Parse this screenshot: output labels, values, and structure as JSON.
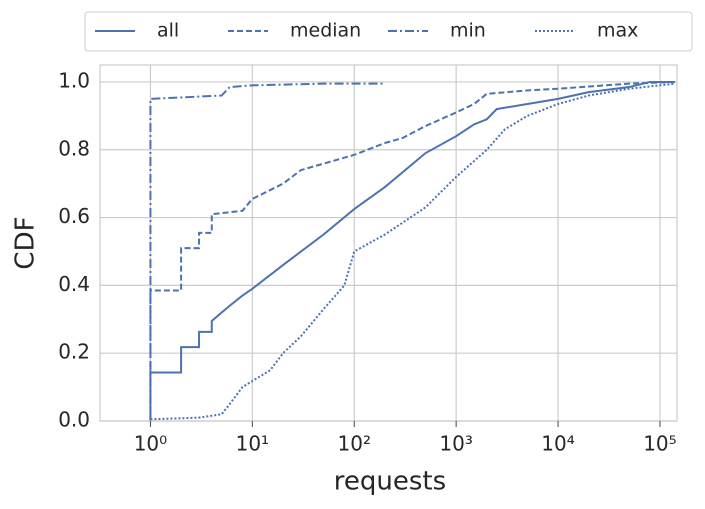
{
  "chart_data": {
    "type": "line",
    "xlabel": "requests",
    "ylabel": "CDF",
    "xscale": "log",
    "grid": true,
    "legend": "top",
    "xlim": [
      0.32,
      147000
    ],
    "ylim": [
      0,
      1.05
    ],
    "xticks": [
      {
        "value": 1,
        "label": "10⁰"
      },
      {
        "value": 10,
        "label": "10¹"
      },
      {
        "value": 100,
        "label": "10²"
      },
      {
        "value": 1000,
        "label": "10³"
      },
      {
        "value": 10000,
        "label": "10⁴"
      },
      {
        "value": 100000,
        "label": "10⁵"
      }
    ],
    "yticks": [
      {
        "value": 0,
        "label": "0.0"
      },
      {
        "value": 0.2,
        "label": "0.2"
      },
      {
        "value": 0.4,
        "label": "0.4"
      },
      {
        "value": 0.6,
        "label": "0.6"
      },
      {
        "value": 0.8,
        "label": "0.8"
      },
      {
        "value": 1,
        "label": "1.0"
      }
    ],
    "series": [
      {
        "name": "all",
        "color": "#4c72b0",
        "style": "solid",
        "x": [
          1,
          1,
          2,
          2,
          3,
          3,
          4,
          4,
          5,
          6,
          8,
          10,
          20,
          50,
          100,
          200,
          500,
          1000,
          1500,
          2000,
          2500,
          5000,
          10000,
          20000,
          50000,
          80000,
          140000
        ],
        "values": [
          0,
          0.143,
          0.143,
          0.218,
          0.218,
          0.263,
          0.263,
          0.295,
          0.32,
          0.34,
          0.37,
          0.39,
          0.46,
          0.55,
          0.625,
          0.69,
          0.79,
          0.84,
          0.875,
          0.89,
          0.92,
          0.935,
          0.95,
          0.97,
          0.985,
          1.0,
          1.0
        ]
      },
      {
        "name": "median",
        "color": "#4c72b0",
        "style": "dashed",
        "x": [
          1,
          1,
          2,
          2,
          3,
          3,
          4,
          4,
          8,
          10,
          20,
          30,
          100,
          200,
          300,
          500,
          1000,
          1500,
          2000,
          5000,
          10000,
          50000,
          140000
        ],
        "values": [
          0,
          0.385,
          0.385,
          0.51,
          0.51,
          0.555,
          0.555,
          0.61,
          0.62,
          0.655,
          0.7,
          0.74,
          0.785,
          0.82,
          0.835,
          0.87,
          0.91,
          0.935,
          0.965,
          0.975,
          0.98,
          0.995,
          1.0
        ]
      },
      {
        "name": "min",
        "color": "#4c72b0",
        "style": "dashdot",
        "x": [
          1,
          1,
          5,
          6,
          10,
          50,
          200
        ],
        "values": [
          0,
          0.95,
          0.96,
          0.985,
          0.99,
          0.995,
          0.995
        ]
      },
      {
        "name": "max",
        "color": "#4c72b0",
        "style": "dotted",
        "x": [
          1,
          3,
          5,
          6,
          8,
          15,
          20,
          30,
          50,
          80,
          100,
          200,
          500,
          1000,
          2000,
          3000,
          5000,
          10000,
          20000,
          50000,
          140000
        ],
        "values": [
          0.005,
          0.01,
          0.02,
          0.05,
          0.1,
          0.15,
          0.2,
          0.25,
          0.33,
          0.4,
          0.5,
          0.55,
          0.63,
          0.72,
          0.8,
          0.86,
          0.9,
          0.935,
          0.96,
          0.98,
          0.995
        ]
      }
    ]
  }
}
